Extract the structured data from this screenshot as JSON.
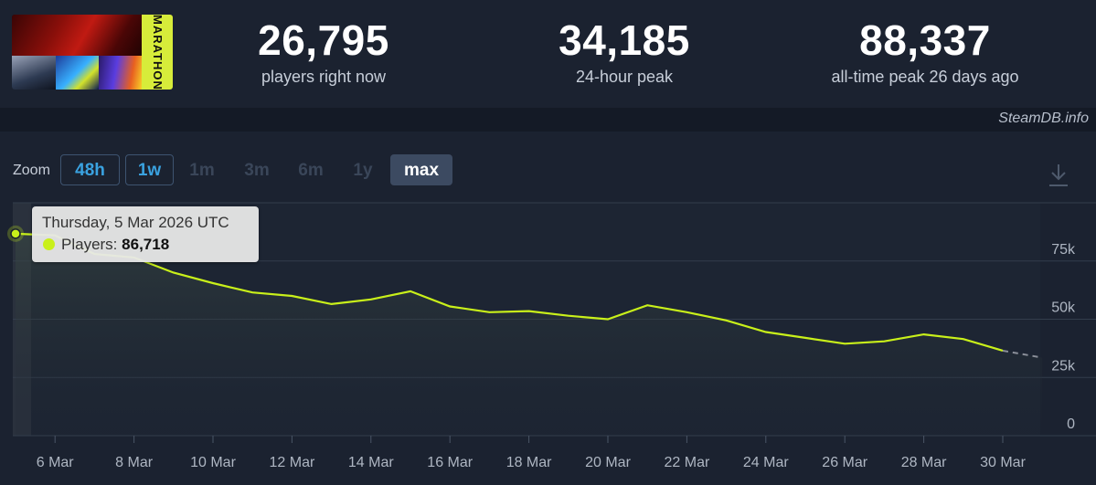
{
  "header": {
    "stats": [
      {
        "value": "26,795",
        "label": "players right now"
      },
      {
        "value": "34,185",
        "label": "24-hour peak"
      },
      {
        "value": "88,337",
        "label": "all-time peak 26 days ago"
      }
    ],
    "game_logo_text": "MARATHON",
    "credit": "SteamDB.info"
  },
  "zoom": {
    "label": "Zoom",
    "buttons": [
      {
        "label": "48h",
        "state": "enabled"
      },
      {
        "label": "1w",
        "state": "enabled"
      },
      {
        "label": "1m",
        "state": "disabled"
      },
      {
        "label": "3m",
        "state": "disabled"
      },
      {
        "label": "6m",
        "state": "disabled"
      },
      {
        "label": "1y",
        "state": "disabled"
      },
      {
        "label": "max",
        "state": "active"
      }
    ],
    "download_icon": "download-icon"
  },
  "tooltip": {
    "date": "Thursday, 5 Mar 2026 UTC",
    "series_label": "Players:",
    "value": "86,718"
  },
  "colors": {
    "line": "#c9f01a",
    "projection": "#8a8f99",
    "background": "#1b2230",
    "accent_blue": "#3aa2e0"
  },
  "chart_data": {
    "type": "line",
    "title": "",
    "xlabel": "",
    "ylabel": "",
    "x": [
      "5 Mar",
      "6 Mar",
      "7 Mar",
      "8 Mar",
      "9 Mar",
      "10 Mar",
      "11 Mar",
      "12 Mar",
      "13 Mar",
      "14 Mar",
      "15 Mar",
      "16 Mar",
      "17 Mar",
      "18 Mar",
      "19 Mar",
      "20 Mar",
      "21 Mar",
      "22 Mar",
      "23 Mar",
      "24 Mar",
      "25 Mar",
      "26 Mar",
      "27 Mar",
      "28 Mar",
      "29 Mar",
      "30 Mar"
    ],
    "series": [
      {
        "values": [
          86718,
          86000,
          78000,
          76500,
          70000,
          65500,
          61500,
          60000,
          56500,
          58500,
          62000,
          55500,
          53000,
          53500,
          51500,
          50000,
          56000,
          53000,
          49500,
          44500,
          42000,
          39500,
          40500,
          43500,
          41500,
          36500
        ]
      }
    ],
    "projection": {
      "from": "30 Mar",
      "from_value": 36500,
      "to_value": 33500
    },
    "x_tick_labels": [
      "6 Mar",
      "8 Mar",
      "10 Mar",
      "12 Mar",
      "14 Mar",
      "16 Mar",
      "18 Mar",
      "20 Mar",
      "22 Mar",
      "24 Mar",
      "26 Mar",
      "28 Mar",
      "30 Mar"
    ],
    "y_tick_labels": [
      "0",
      "25k",
      "50k",
      "75k"
    ],
    "y_ticks": [
      0,
      25000,
      50000,
      75000
    ],
    "ylim": [
      0,
      100000
    ],
    "grid": true,
    "highlighted_point": {
      "x": "5 Mar",
      "value": 86718
    }
  }
}
